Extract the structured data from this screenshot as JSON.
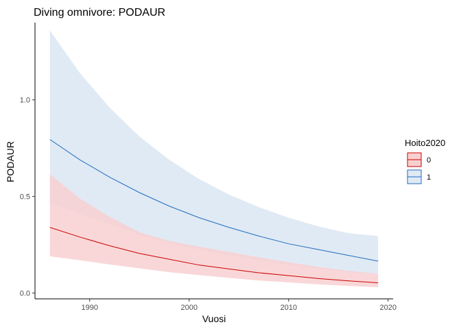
{
  "chart_data": {
    "type": "line",
    "title": "Diving omnivore: PODAUR",
    "xlabel": "Vuosi",
    "ylabel": "PODAUR",
    "xlim": [
      1984.5,
      2020.5
    ],
    "ylim": [
      -0.03,
      1.4
    ],
    "xticks": [
      1990,
      2000,
      2010,
      2020
    ],
    "yticks": [
      0.0,
      0.5,
      1.0
    ],
    "ytick_labels": [
      "0.0",
      "0.5",
      "1.0"
    ],
    "grid": false,
    "legend": {
      "title": "Hoito2020",
      "position": "right"
    },
    "x": [
      1986,
      1989,
      1992,
      1995,
      1998,
      2001,
      2004,
      2007,
      2010,
      2013,
      2016,
      2019
    ],
    "series": [
      {
        "name": "0",
        "color": "#cc0000",
        "fill": "#f8d0d1",
        "values": [
          0.34,
          0.29,
          0.245,
          0.205,
          0.175,
          0.145,
          0.125,
          0.105,
          0.09,
          0.075,
          0.063,
          0.053
        ],
        "lower": [
          0.19,
          0.17,
          0.148,
          0.128,
          0.108,
          0.093,
          0.078,
          0.065,
          0.055,
          0.045,
          0.037,
          0.03
        ],
        "upper": [
          0.615,
          0.49,
          0.395,
          0.315,
          0.27,
          0.24,
          0.213,
          0.185,
          0.16,
          0.135,
          0.115,
          0.1
        ]
      },
      {
        "name": "1",
        "color": "#1f6bbf",
        "fill": "#e0eaf4",
        "values": [
          0.795,
          0.69,
          0.6,
          0.52,
          0.45,
          0.39,
          0.34,
          0.295,
          0.255,
          0.225,
          0.195,
          0.165
        ],
        "lower": [
          0.465,
          0.41,
          0.355,
          0.3,
          0.26,
          0.225,
          0.195,
          0.17,
          0.145,
          0.125,
          0.11,
          0.1
        ],
        "upper": [
          1.36,
          1.14,
          0.96,
          0.81,
          0.69,
          0.59,
          0.51,
          0.445,
          0.39,
          0.345,
          0.31,
          0.295
        ]
      }
    ]
  }
}
